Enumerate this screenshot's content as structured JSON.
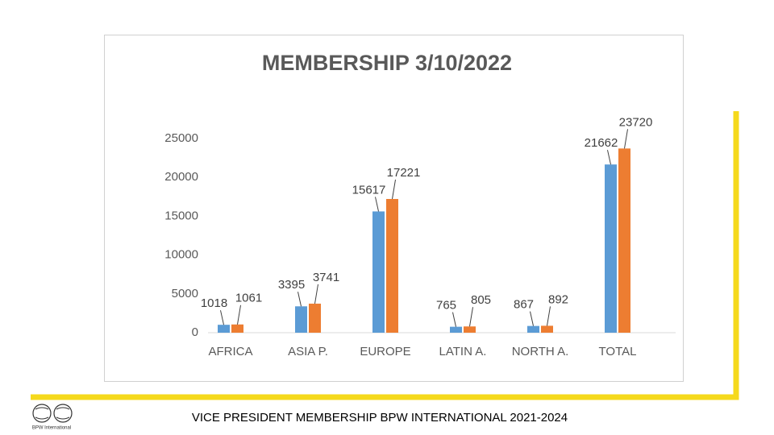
{
  "chart_data": {
    "type": "bar",
    "title": "MEMBERSHIP 3/10/2022",
    "categories": [
      "AFRICA",
      "ASIA P.",
      "EUROPE",
      "LATIN A.",
      "NORTH A.",
      "TOTAL"
    ],
    "series": [
      {
        "color": "#5b9bd5",
        "values": [
          1018,
          3395,
          15617,
          765,
          867,
          21662
        ]
      },
      {
        "color": "#ed7d31",
        "values": [
          1061,
          3741,
          17221,
          805,
          892,
          23720
        ]
      }
    ],
    "ylim": [
      0,
      25000
    ],
    "yticks": [
      0,
      5000,
      10000,
      15000,
      20000,
      25000
    ],
    "grid": false
  },
  "footer": {
    "text": "VICE PRESIDENT MEMBERSHIP BPW INTERNATIONAL 2021-2024",
    "logo_text": "BPW International"
  }
}
